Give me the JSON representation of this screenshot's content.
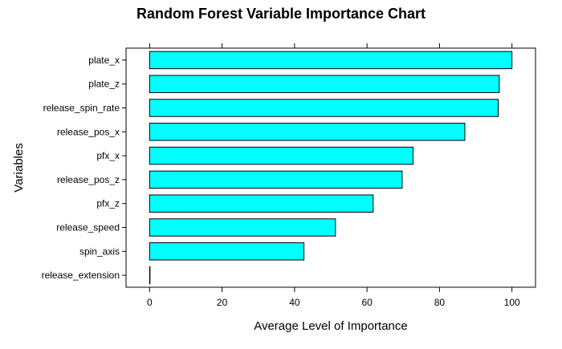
{
  "chart_data": {
    "type": "bar",
    "orientation": "horizontal",
    "title": "Random Forest Variable Importance Chart",
    "xlabel": "Average Level of Importance",
    "ylabel": "Variables",
    "categories": [
      "plate_x",
      "plate_z",
      "release_spin_rate",
      "release_pos_x",
      "pfx_x",
      "release_pos_z",
      "pfx_z",
      "release_speed",
      "spin_axis",
      "release_extension"
    ],
    "values": [
      100,
      96.5,
      96.2,
      87,
      72.7,
      69.7,
      61.7,
      51.3,
      42.6,
      0
    ],
    "xlim": [
      -6.5,
      106.5
    ],
    "xticks": [
      0,
      20,
      40,
      60,
      80,
      100
    ],
    "ticks_top": true,
    "grid": false,
    "legend": "none",
    "colors": {
      "bar_fill": "#00ffff",
      "bar_stroke": "#000000",
      "axis": "#000000"
    }
  }
}
